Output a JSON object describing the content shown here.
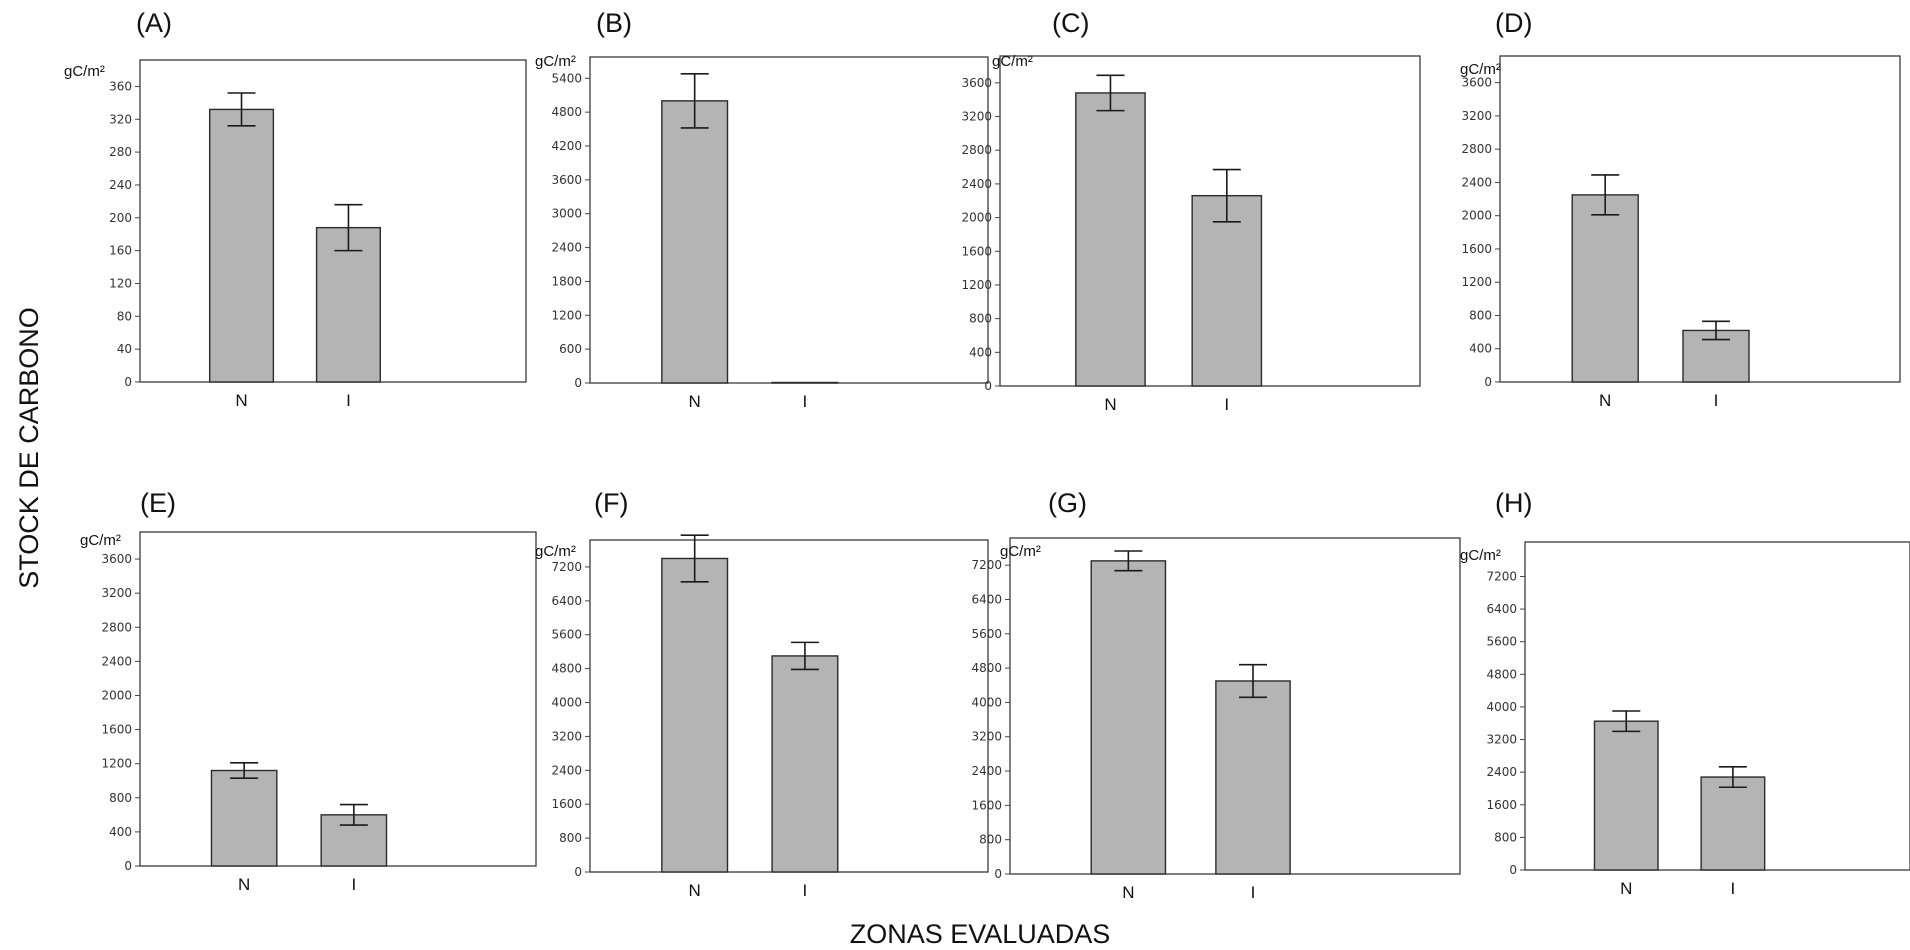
{
  "figure": {
    "ylabel": "STOCK DE CARBONO",
    "xlabel": "ZONAS EVALUADAS"
  },
  "chart_data": [
    {
      "type": "bar",
      "panel": "(A)",
      "unit": "gC/m²",
      "categories": [
        "N",
        "I"
      ],
      "values": [
        332,
        188
      ],
      "errors": [
        20,
        28
      ],
      "ylim": [
        0,
        380
      ],
      "yticks": [
        0,
        40,
        80,
        120,
        160,
        200,
        240,
        280,
        320,
        360
      ]
    },
    {
      "type": "bar",
      "panel": "(B)",
      "unit": "gC/m²",
      "categories": [
        "N",
        "I"
      ],
      "values": [
        5000,
        0
      ],
      "errors": [
        480,
        0
      ],
      "ylim": [
        0,
        5600
      ],
      "yticks": [
        0,
        600,
        1200,
        1800,
        2400,
        3000,
        3600,
        4200,
        4800,
        5400
      ]
    },
    {
      "type": "bar",
      "panel": "(C)",
      "unit": "gC/m²",
      "categories": [
        "N",
        "I"
      ],
      "values": [
        3480,
        2260
      ],
      "errors": [
        210,
        310
      ],
      "ylim": [
        0,
        3800
      ],
      "yticks": [
        0,
        400,
        800,
        1200,
        1600,
        2000,
        2400,
        2800,
        3200,
        3600
      ]
    },
    {
      "type": "bar",
      "panel": "(D)",
      "unit": "gC/m²",
      "categories": [
        "N",
        "I"
      ],
      "values": [
        2250,
        620
      ],
      "errors": [
        240,
        110
      ],
      "ylim": [
        0,
        3800
      ],
      "yticks": [
        0,
        400,
        800,
        1200,
        1600,
        2000,
        2400,
        2800,
        3200,
        3600
      ]
    },
    {
      "type": "bar",
      "panel": "(E)",
      "unit": "gC/m²",
      "categories": [
        "N",
        "I"
      ],
      "values": [
        1120,
        600
      ],
      "errors": [
        90,
        120
      ],
      "ylim": [
        0,
        3800
      ],
      "yticks": [
        0,
        400,
        800,
        1200,
        1600,
        2000,
        2400,
        2800,
        3200,
        3600
      ]
    },
    {
      "type": "bar",
      "panel": "(F)",
      "unit": "gC/m²",
      "categories": [
        "N",
        "I"
      ],
      "values": [
        7400,
        5100
      ],
      "errors": [
        550,
        320
      ],
      "ylim": [
        0,
        7600
      ],
      "yticks": [
        0,
        800,
        1600,
        2400,
        3200,
        4000,
        4800,
        5600,
        6400,
        7200
      ]
    },
    {
      "type": "bar",
      "panel": "(G)",
      "unit": "gC/m²",
      "categories": [
        "N",
        "I"
      ],
      "values": [
        7300,
        4500
      ],
      "errors": [
        230,
        380
      ],
      "ylim": [
        0,
        7600
      ],
      "yticks": [
        0,
        800,
        1600,
        2400,
        3200,
        4000,
        4800,
        5600,
        6400,
        7200
      ]
    },
    {
      "type": "bar",
      "panel": "(H)",
      "unit": "gC/m²",
      "categories": [
        "N",
        "I"
      ],
      "values": [
        3650,
        2280
      ],
      "errors": [
        250,
        250
      ],
      "ylim": [
        0,
        7800
      ],
      "yticks": [
        0,
        800,
        1600,
        2400,
        3200,
        4000,
        4800,
        5600,
        6400,
        7200
      ]
    }
  ]
}
